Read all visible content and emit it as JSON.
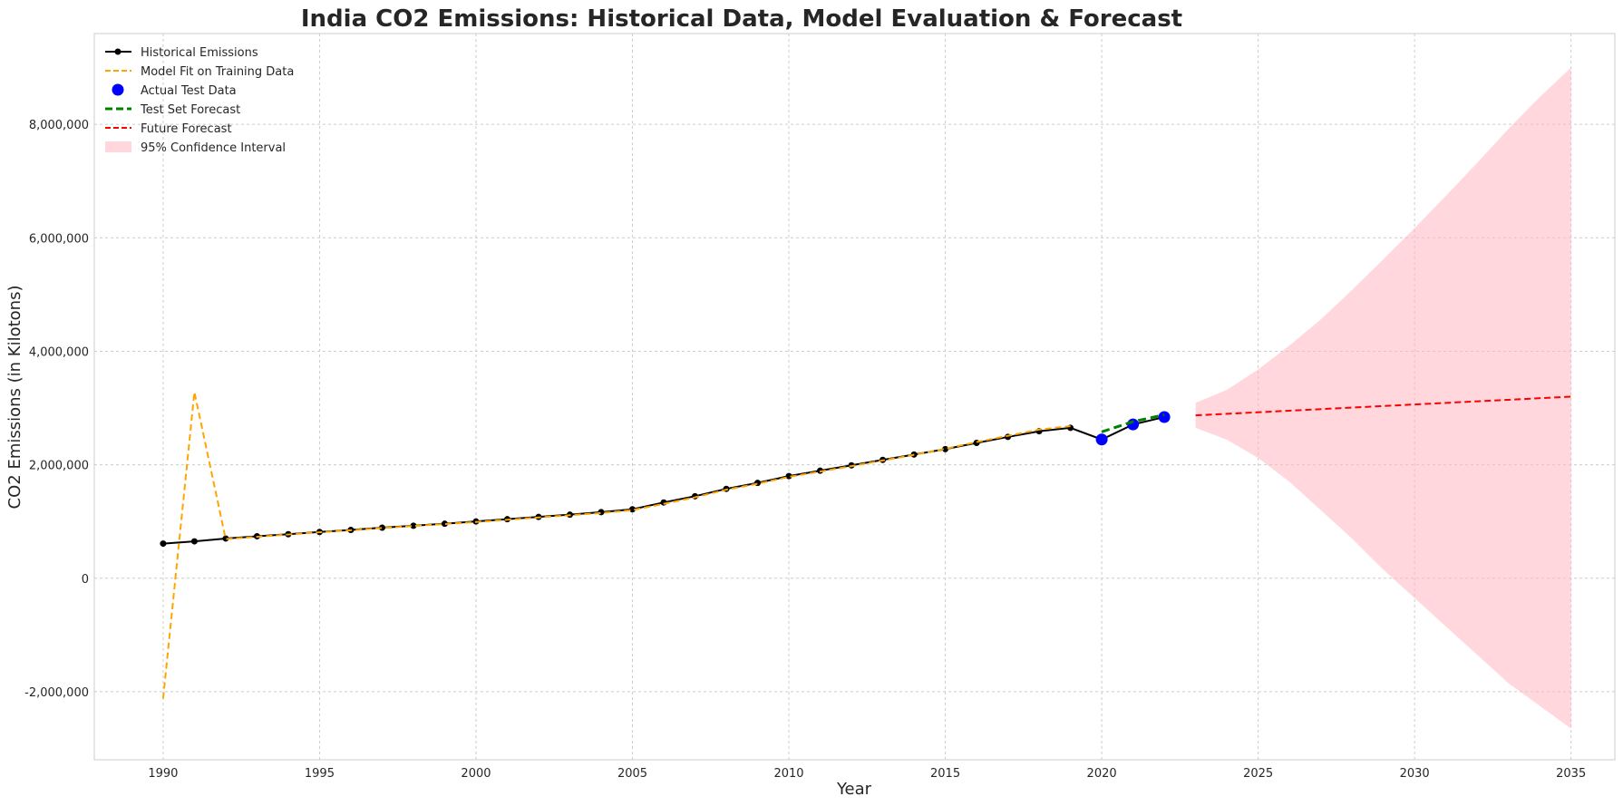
{
  "chart_data": {
    "type": "line",
    "title": "India CO2 Emissions: Historical Data, Model Evaluation & Forecast",
    "xlabel": "Year",
    "ylabel": "CO2 Emissions (in Kilotons)",
    "xlim": [
      1987.8,
      2036.4
    ],
    "ylim": [
      -3200000,
      9600000
    ],
    "x_ticks": [
      1990,
      1995,
      2000,
      2005,
      2010,
      2015,
      2020,
      2025,
      2030,
      2035
    ],
    "x_tick_labels": [
      "1990",
      "1995",
      "2000",
      "2005",
      "2010",
      "2015",
      "2020",
      "2025",
      "2030",
      "2035"
    ],
    "y_ticks": [
      -2000000,
      0,
      2000000,
      4000000,
      6000000,
      8000000
    ],
    "y_tick_labels": [
      "-2,000,000",
      "0",
      "2,000,000",
      "4,000,000",
      "6,000,000",
      "8,000,000"
    ],
    "grid": true,
    "legend_position": "upper-left",
    "series": [
      {
        "name": "Historical Emissions",
        "color": "#000000",
        "style": "solid-with-markers",
        "x": [
          1990,
          1991,
          1992,
          1993,
          1994,
          1995,
          1996,
          1997,
          1998,
          1999,
          2000,
          2001,
          2002,
          2003,
          2004,
          2005,
          2006,
          2007,
          2008,
          2009,
          2010,
          2011,
          2012,
          2013,
          2014,
          2015,
          2016,
          2017,
          2018,
          2019,
          2020,
          2021,
          2022
        ],
        "y": [
          610000,
          650000,
          700000,
          740000,
          775000,
          815000,
          850000,
          890000,
          925000,
          960000,
          1000000,
          1040000,
          1080000,
          1120000,
          1165000,
          1215000,
          1335000,
          1445000,
          1575000,
          1680000,
          1800000,
          1895000,
          1990000,
          2085000,
          2180000,
          2275000,
          2385000,
          2490000,
          2590000,
          2650000,
          2445000,
          2710000,
          2840000
        ]
      },
      {
        "name": "Model Fit on Training Data",
        "color": "#ffa500",
        "style": "dashed",
        "x": [
          1990,
          1991,
          1992,
          1993,
          1994,
          1995,
          1996,
          1997,
          1998,
          1999,
          2000,
          2001,
          2002,
          2003,
          2004,
          2005,
          2006,
          2007,
          2008,
          2009,
          2010,
          2011,
          2012,
          2013,
          2014,
          2015,
          2016,
          2017,
          2018,
          2019
        ],
        "y": [
          -2120000,
          3280000,
          690000,
          730000,
          770000,
          810000,
          845000,
          885000,
          920000,
          955000,
          990000,
          1030000,
          1070000,
          1110000,
          1150000,
          1200000,
          1310000,
          1425000,
          1560000,
          1665000,
          1785000,
          1880000,
          1975000,
          2075000,
          2175000,
          2280000,
          2400000,
          2510000,
          2620000,
          2680000
        ]
      },
      {
        "name": "Actual Test Data",
        "color": "#0000ff",
        "style": "markers",
        "x": [
          2020,
          2021,
          2022
        ],
        "y": [
          2445000,
          2710000,
          2840000
        ]
      },
      {
        "name": "Test Set Forecast",
        "color": "#008000",
        "style": "dashed-bold",
        "x": [
          2020,
          2021,
          2022
        ],
        "y": [
          2580000,
          2760000,
          2880000
        ]
      },
      {
        "name": "Future Forecast",
        "color": "#ff0000",
        "style": "dashed",
        "x": [
          2023,
          2035
        ],
        "y": [
          2870000,
          3200000
        ]
      },
      {
        "name": "95% Confidence Interval",
        "color": "#ffb6c1",
        "style": "band",
        "x": [
          2023,
          2024,
          2025,
          2026,
          2027,
          2028,
          2029,
          2030,
          2031,
          2032,
          2033,
          2034,
          2035
        ],
        "lower": [
          2650000,
          2440000,
          2120000,
          1700000,
          1200000,
          700000,
          150000,
          -350000,
          -850000,
          -1350000,
          -1850000,
          -2250000,
          -2650000
        ],
        "upper": [
          3090000,
          3320000,
          3680000,
          4100000,
          4560000,
          5080000,
          5620000,
          6170000,
          6740000,
          7320000,
          7920000,
          8480000,
          9000000
        ]
      }
    ]
  }
}
